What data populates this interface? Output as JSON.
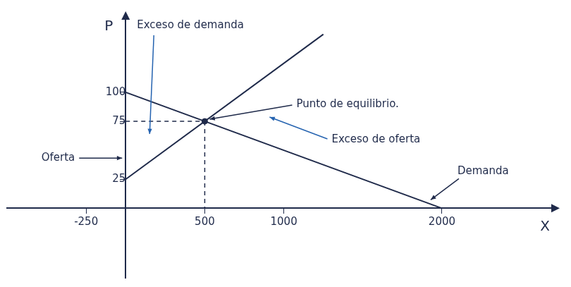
{
  "chart_data": {
    "type": "line",
    "axis_labels": {
      "x": "X",
      "y": "P"
    },
    "series": [
      {
        "name": "Demanda",
        "color": "#1f2a4a",
        "x": [
          0,
          2000
        ],
        "values": [
          100,
          0
        ]
      },
      {
        "name": "Oferta",
        "color": "#1f2a4a",
        "x": [
          0,
          1250
        ],
        "values": [
          25,
          150
        ]
      }
    ],
    "equilibrium": {
      "label": "Punto de equilibrio.",
      "x": 500,
      "y": 75
    },
    "annotations": {
      "excess_demand": "Exceso de demanda",
      "excess_supply": "Exceso de oferta"
    },
    "xlim": [
      -750,
      2700
    ],
    "xticks": [
      -250,
      500,
      1000,
      2000
    ],
    "ylim": [
      -60,
      165
    ],
    "yticks": [
      25,
      75,
      100
    ],
    "grid": false
  }
}
